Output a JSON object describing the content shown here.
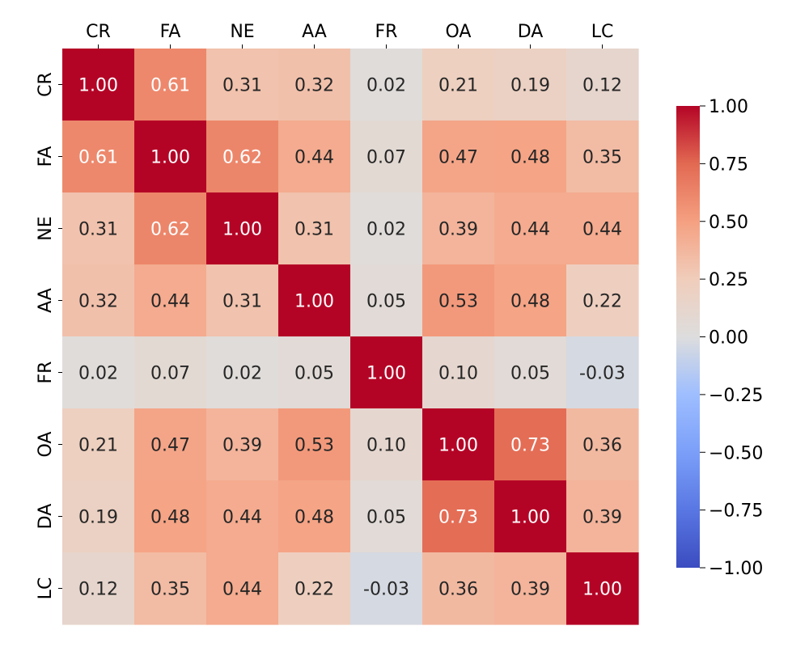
{
  "chart_data": {
    "type": "heatmap",
    "title": "",
    "xlabel": "",
    "ylabel": "",
    "x_labels": [
      "CR",
      "FA",
      "NE",
      "AA",
      "FR",
      "OA",
      "DA",
      "LC"
    ],
    "y_labels": [
      "CR",
      "FA",
      "NE",
      "AA",
      "FR",
      "OA",
      "DA",
      "LC"
    ],
    "values": [
      [
        1.0,
        0.61,
        0.31,
        0.32,
        0.02,
        0.21,
        0.19,
        0.12
      ],
      [
        0.61,
        1.0,
        0.62,
        0.44,
        0.07,
        0.47,
        0.48,
        0.35
      ],
      [
        0.31,
        0.62,
        1.0,
        0.31,
        0.02,
        0.39,
        0.44,
        0.44
      ],
      [
        0.32,
        0.44,
        0.31,
        1.0,
        0.05,
        0.53,
        0.48,
        0.22
      ],
      [
        0.02,
        0.07,
        0.02,
        0.05,
        1.0,
        0.1,
        0.05,
        -0.03
      ],
      [
        0.21,
        0.47,
        0.39,
        0.53,
        0.1,
        1.0,
        0.73,
        0.36
      ],
      [
        0.19,
        0.48,
        0.44,
        0.48,
        0.05,
        0.73,
        1.0,
        0.39
      ],
      [
        0.12,
        0.35,
        0.44,
        0.22,
        -0.03,
        0.36,
        0.39,
        1.0
      ]
    ],
    "value_range": [
      -1.0,
      1.0
    ],
    "colormap": "coolwarm",
    "colormap_stops": [
      {
        "v": -1.0,
        "color": "#3b4cc0"
      },
      {
        "v": -0.75,
        "color": "#5977e3"
      },
      {
        "v": -0.5,
        "color": "#7b9ff9"
      },
      {
        "v": -0.25,
        "color": "#9ebeff"
      },
      {
        "v": 0.0,
        "color": "#dddddd"
      },
      {
        "v": 0.25,
        "color": "#f0cdbb"
      },
      {
        "v": 0.5,
        "color": "#f5a081"
      },
      {
        "v": 0.75,
        "color": "#e26952"
      },
      {
        "v": 1.0,
        "color": "#b40426"
      }
    ],
    "annotation_dark_color": "#262626",
    "annotation_light_color": "#ffffff",
    "x_tick_position": "top",
    "colorbar": {
      "position": "right",
      "ticks": [
        1.0,
        0.75,
        0.5,
        0.25,
        0.0,
        -0.25,
        -0.5,
        -0.75,
        -1.0
      ],
      "tick_labels": [
        "1.00",
        "0.75",
        "0.50",
        "0.25",
        "0.00",
        "−0.25",
        "−0.50",
        "−0.75",
        "−1.00"
      ]
    }
  }
}
